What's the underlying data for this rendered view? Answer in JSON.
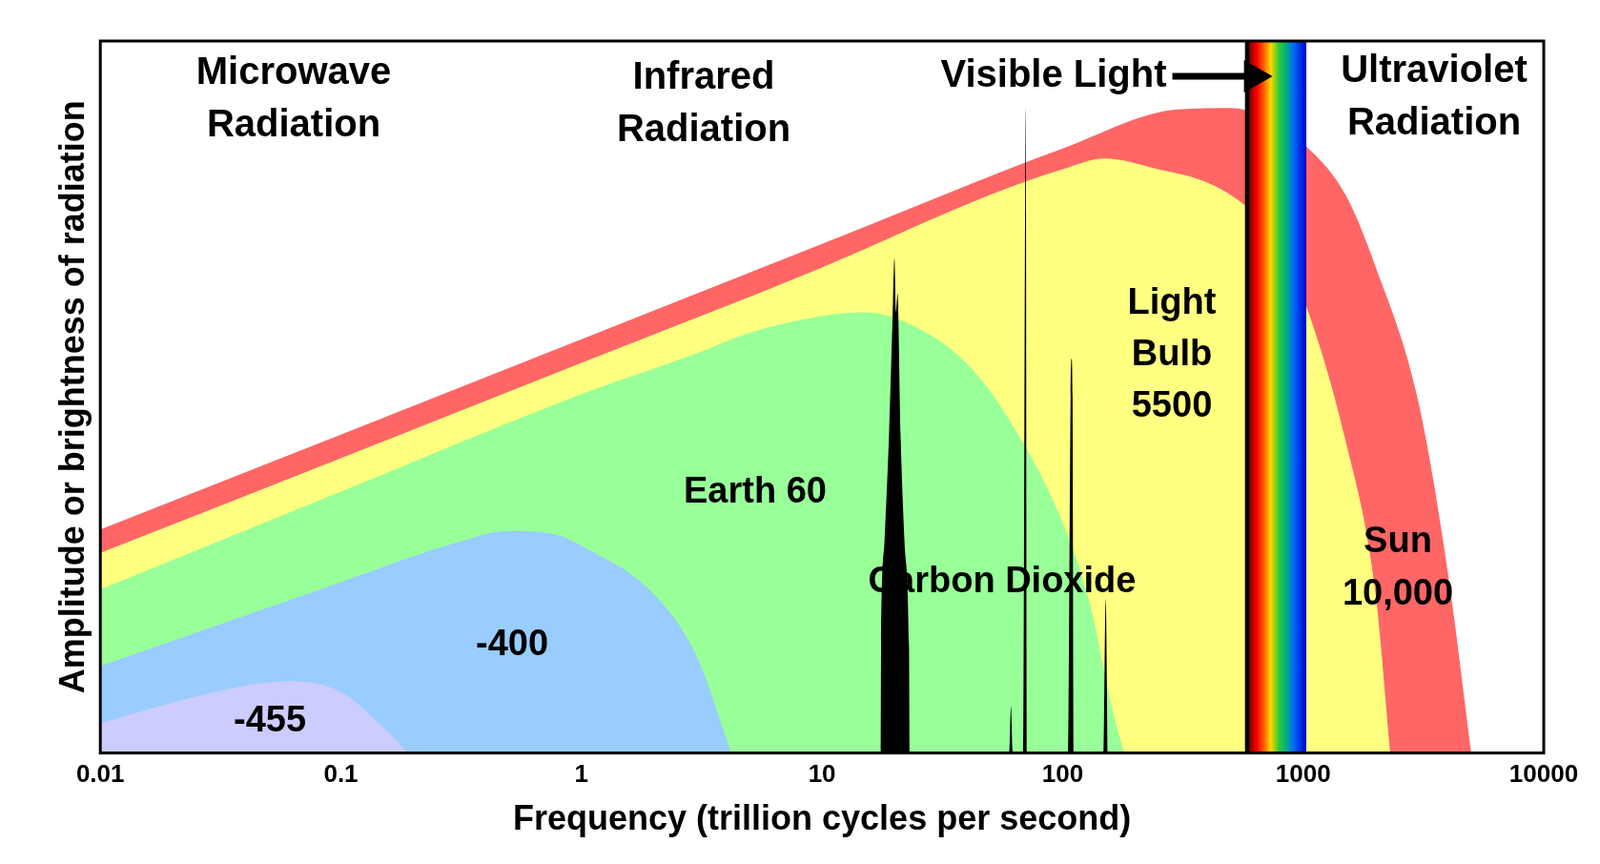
{
  "chart_data": {
    "type": "area",
    "xlabel": "Frequency (trillion cycles per second)",
    "ylabel": "Amplitude or brightness of radiation",
    "log": "x",
    "xlim": [
      0.01,
      10000
    ],
    "xticks": [
      0.01,
      0.1,
      1,
      10,
      100,
      1000,
      10000
    ],
    "ylim": [
      0,
      100
    ],
    "tick_labels": "x",
    "grid": false,
    "annotations": [
      "Microwave\nRadiation",
      "Infrared\nRadiation",
      "Ultraviolet\nRadiation"
    ],
    "regions": [
      {
        "name": "Visible Light",
        "xlim": [
          573,
          1030
        ]
      }
    ],
    "series": [
      {
        "name": "Sun\n10,000",
        "color": "#ff6666",
        "x": [
          0.01,
          0.1,
          1,
          10,
          100,
          300,
          500,
          700,
          1000,
          1500,
          2000,
          3000,
          4000,
          5000
        ],
        "values": [
          31.4,
          44.7,
          58.1,
          71.5,
          84.9,
          90.4,
          90.6,
          89.2,
          85.6,
          78.4,
          68.3,
          49.6,
          25.2,
          0
        ]
      },
      {
        "name": "Light\nBulb\n5500",
        "color": "#ffff80",
        "x": [
          0.01,
          0.1,
          1,
          10,
          50,
          100,
          150,
          250,
          400,
          600,
          800,
          1000,
          1500,
          2000,
          2300
        ],
        "values": [
          28.1,
          41.4,
          54.8,
          68.2,
          78.4,
          82,
          83.5,
          82,
          80.1,
          76.3,
          71.2,
          64,
          43.9,
          22.3,
          0
        ]
      },
      {
        "name": "Earth 60",
        "color": "#99ff99",
        "x": [
          0.01,
          0.1,
          1,
          3,
          5,
          10,
          15,
          25,
          40,
          60,
          100,
          130,
          160,
          180
        ],
        "values": [
          23,
          36.7,
          50.4,
          56.1,
          59,
          61.4,
          61.9,
          59.7,
          54.7,
          46.8,
          32.4,
          20.9,
          6.5,
          0
        ]
      },
      {
        "name": "-400",
        "color": "#99ccff",
        "x": [
          0.01,
          0.1,
          0.3,
          0.5,
          0.8,
          1,
          2,
          3,
          4.2
        ],
        "values": [
          12.2,
          24,
          29.5,
          31.2,
          30.6,
          29.1,
          22.3,
          13.7,
          0
        ]
      },
      {
        "name": "-455",
        "color": "#ccccff",
        "x": [
          0.01,
          0.03,
          0.06,
          0.1,
          0.15,
          0.19
        ],
        "values": [
          4.2,
          8.6,
          10.1,
          8.6,
          3.6,
          0
        ]
      },
      {
        "name": "Carbon Dioxide",
        "color": "#000000",
        "x": [
          17.5,
          17.6,
          18.2,
          19,
          19.6,
          20,
          20.3,
          20.6,
          21.2,
          22,
          23,
          23.2,
          60,
          61,
          62,
          69,
          70.3,
          71.5,
          106,
          108,
          109,
          110,
          112,
          148,
          151,
          154
        ],
        "values": [
          0,
          15,
          30,
          45,
          60,
          69.5,
          62,
          64.5,
          45,
          30,
          15,
          0,
          0,
          6.5,
          0,
          0,
          90.6,
          0,
          0,
          50,
          55.4,
          50,
          0,
          0,
          21.6,
          0
        ]
      }
    ]
  }
}
